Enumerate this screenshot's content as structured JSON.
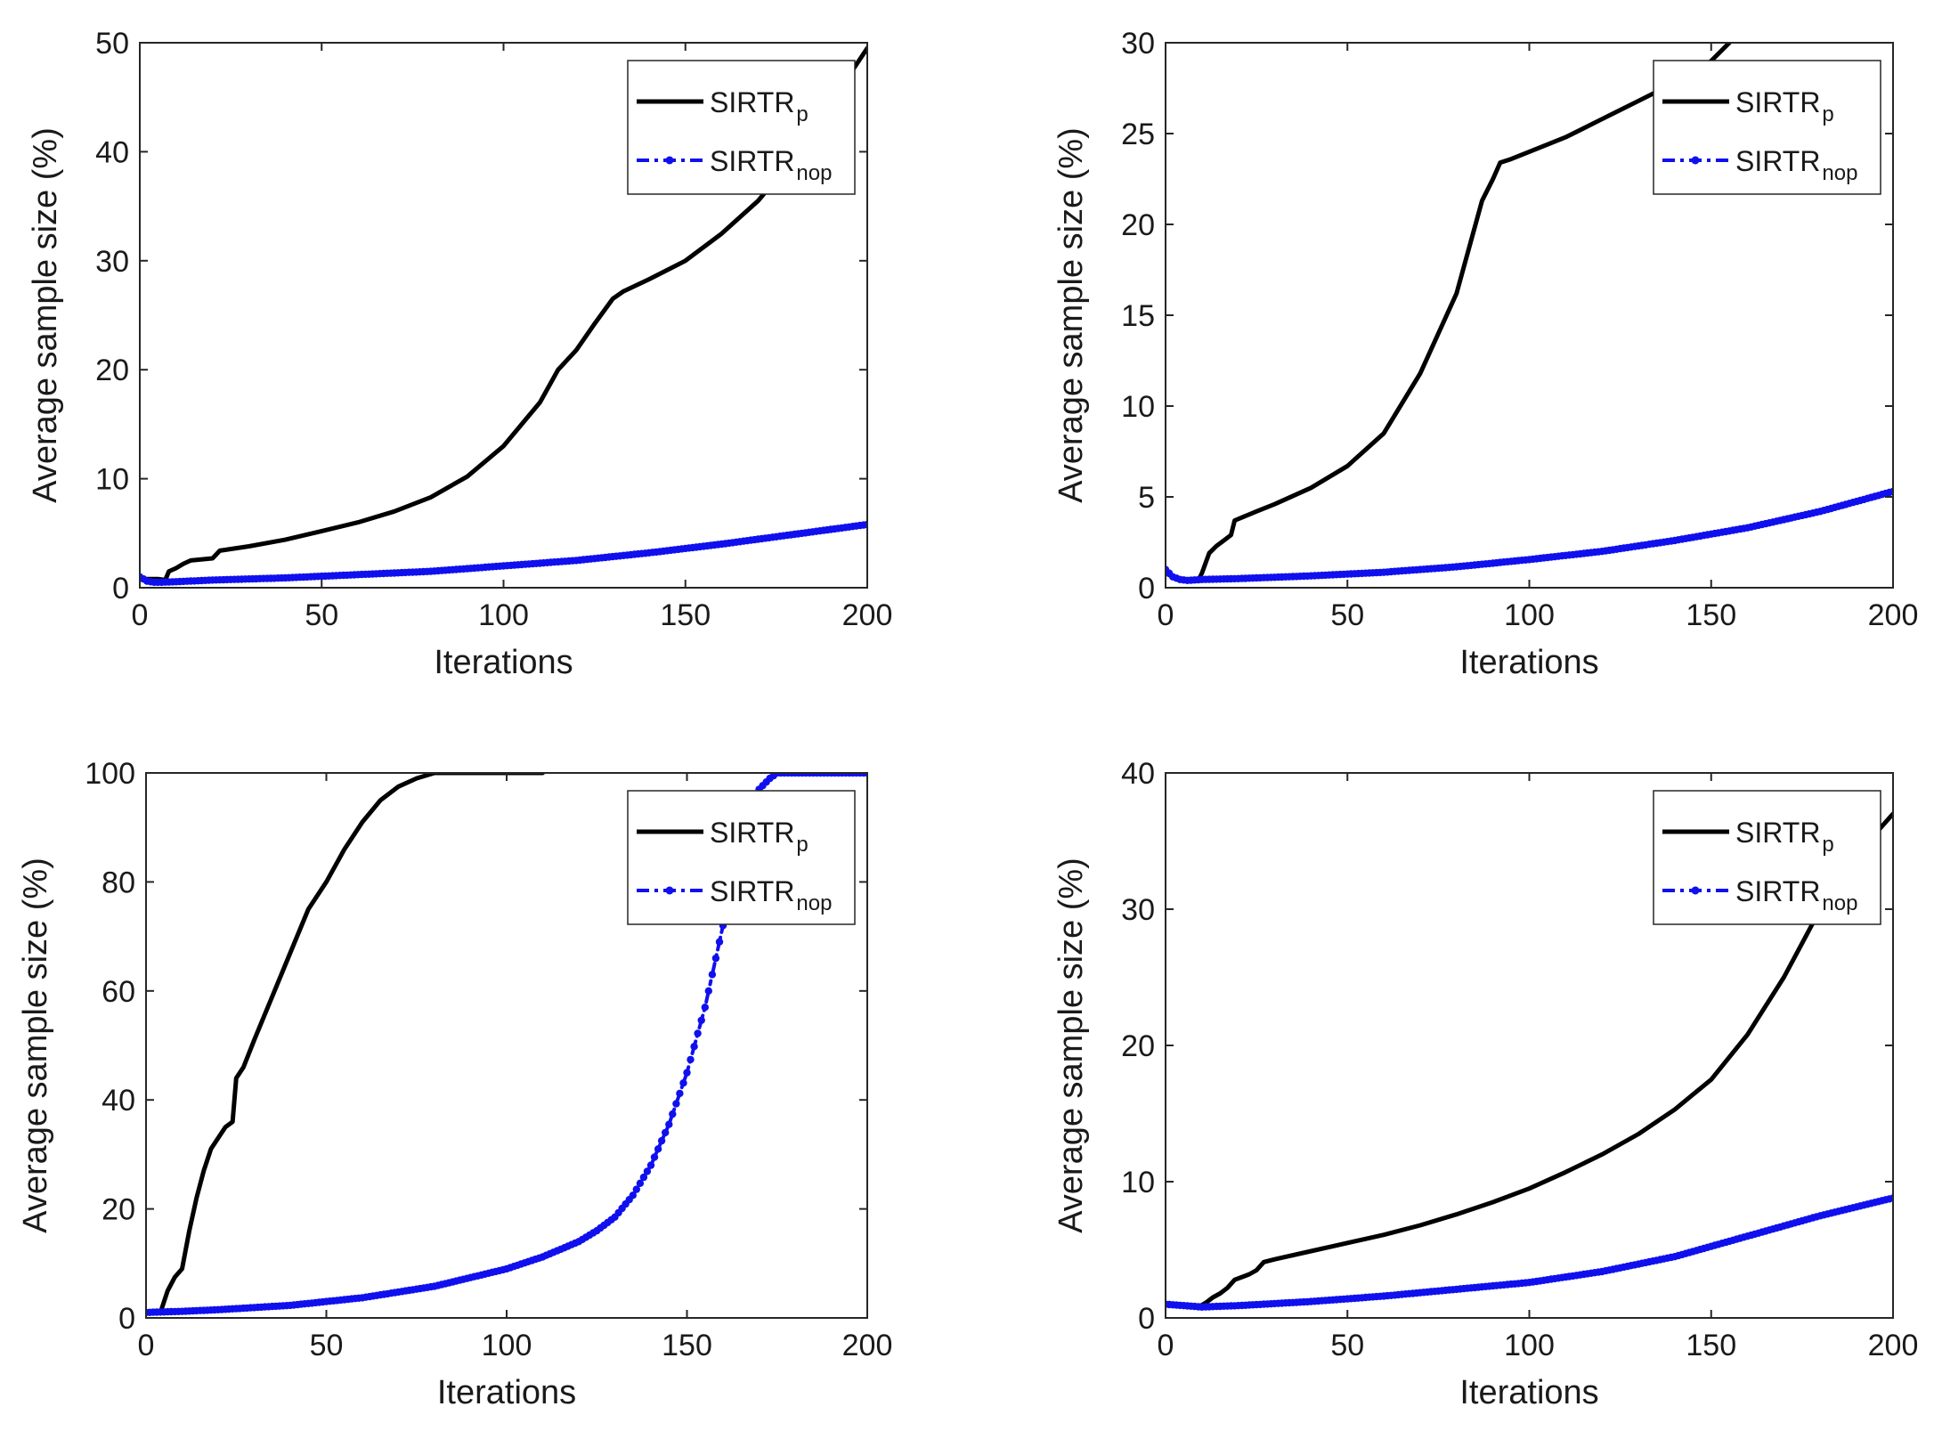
{
  "chart_data": [
    {
      "type": "line",
      "xlabel": "Iterations",
      "ylabel": "Average sample size (%)",
      "xlim": [
        0,
        200
      ],
      "ylim": [
        0,
        50
      ],
      "xticks": [
        0,
        50,
        100,
        150,
        200
      ],
      "yticks": [
        0,
        10,
        20,
        30,
        40,
        50
      ],
      "legend_position": "top-right",
      "series": [
        {
          "name": "SIRTR",
          "subscript": "p",
          "color": "#000000",
          "style": "solid",
          "marker": "none",
          "x": [
            0,
            5,
            7,
            8,
            10,
            12,
            14,
            20,
            22,
            30,
            40,
            50,
            60,
            70,
            80,
            90,
            100,
            110,
            115,
            120,
            125,
            130,
            133,
            140,
            150,
            160,
            170,
            180,
            190,
            200
          ],
          "y": [
            0.8,
            0.8,
            0.7,
            1.5,
            1.8,
            2.2,
            2.5,
            2.7,
            3.4,
            3.8,
            4.4,
            5.2,
            6.0,
            7.0,
            8.3,
            10.2,
            13.0,
            17.0,
            20.0,
            21.8,
            24.2,
            26.5,
            27.2,
            28.3,
            30.0,
            32.5,
            35.5,
            39.5,
            44.5,
            49.5
          ]
        },
        {
          "name": "SIRTR",
          "subscript": "nop",
          "color": "#1010ee",
          "style": "dashdot",
          "marker": "dot",
          "x": [
            0,
            2,
            4,
            6,
            10,
            20,
            40,
            60,
            80,
            100,
            120,
            140,
            160,
            180,
            200
          ],
          "y": [
            1.0,
            0.6,
            0.5,
            0.5,
            0.55,
            0.7,
            0.9,
            1.2,
            1.5,
            2.0,
            2.5,
            3.2,
            4.0,
            4.9,
            5.8
          ]
        }
      ]
    },
    {
      "type": "line",
      "xlabel": "Iterations",
      "ylabel": "Average sample size (%)",
      "xlim": [
        0,
        200
      ],
      "ylim": [
        0,
        30
      ],
      "xticks": [
        0,
        50,
        100,
        150,
        200
      ],
      "yticks": [
        0,
        5,
        10,
        15,
        20,
        25,
        30
      ],
      "legend_position": "top-right",
      "series": [
        {
          "name": "SIRTR",
          "subscript": "p",
          "color": "#000000",
          "style": "solid",
          "marker": "none",
          "x": [
            0,
            3,
            6,
            9,
            10,
            12,
            14,
            16,
            18,
            19,
            25,
            30,
            40,
            50,
            60,
            70,
            80,
            87,
            90,
            92,
            95,
            100,
            110,
            120,
            130,
            140,
            150,
            155
          ],
          "y": [
            0.8,
            0.5,
            0.4,
            0.4,
            0.8,
            1.9,
            2.3,
            2.6,
            2.9,
            3.7,
            4.2,
            4.6,
            5.5,
            6.7,
            8.5,
            11.8,
            16.2,
            21.3,
            22.5,
            23.4,
            23.6,
            24.0,
            24.8,
            25.8,
            26.8,
            27.8,
            29.0,
            30.0
          ]
        },
        {
          "name": "SIRTR",
          "subscript": "nop",
          "color": "#1010ee",
          "style": "dashdot",
          "marker": "dot",
          "x": [
            0,
            2,
            4,
            6,
            10,
            20,
            40,
            60,
            80,
            100,
            120,
            140,
            160,
            180,
            200
          ],
          "y": [
            1.0,
            0.6,
            0.45,
            0.4,
            0.45,
            0.5,
            0.65,
            0.85,
            1.15,
            1.55,
            2.0,
            2.6,
            3.3,
            4.2,
            5.3
          ]
        }
      ]
    },
    {
      "type": "line",
      "xlabel": "Iterations",
      "ylabel": "Average sample size (%)",
      "xlim": [
        0,
        200
      ],
      "ylim": [
        0,
        100
      ],
      "xticks": [
        0,
        50,
        100,
        150,
        200
      ],
      "yticks": [
        0,
        20,
        40,
        60,
        80,
        100
      ],
      "legend_position": "top-right",
      "series": [
        {
          "name": "SIRTR",
          "subscript": "p",
          "color": "#000000",
          "style": "solid",
          "marker": "none",
          "x": [
            0,
            4,
            6,
            8,
            10,
            12,
            14,
            16,
            18,
            20,
            22,
            24,
            25,
            27,
            30,
            35,
            40,
            45,
            50,
            55,
            60,
            65,
            70,
            75,
            80,
            85,
            110
          ],
          "y": [
            1,
            1,
            5,
            7.5,
            9,
            16,
            22,
            27,
            31,
            33,
            35,
            36,
            44,
            46,
            51,
            59,
            67,
            75,
            80,
            86,
            91,
            95,
            97.5,
            99,
            100,
            100,
            100
          ]
        },
        {
          "name": "SIRTR",
          "subscript": "nop",
          "color": "#1010ee",
          "style": "dashdot",
          "marker": "dot",
          "x": [
            0,
            10,
            20,
            40,
            60,
            80,
            100,
            110,
            120,
            125,
            130,
            135,
            140,
            145,
            150,
            155,
            160,
            163,
            165,
            168,
            170,
            173,
            175,
            180,
            200
          ],
          "y": [
            1,
            1.2,
            1.5,
            2.3,
            3.7,
            5.8,
            9,
            11.2,
            14.0,
            16.0,
            18.5,
            22.5,
            28.0,
            35.5,
            45.0,
            57.0,
            72.0,
            82.0,
            88.0,
            94.0,
            97.0,
            99.0,
            100,
            100,
            100
          ]
        }
      ]
    },
    {
      "type": "line",
      "xlabel": "Iterations",
      "ylabel": "Average sample size (%)",
      "xlim": [
        0,
        200
      ],
      "ylim": [
        0,
        40
      ],
      "xticks": [
        0,
        50,
        100,
        150,
        200
      ],
      "yticks": [
        0,
        10,
        20,
        30,
        40
      ],
      "legend_position": "top-right",
      "series": [
        {
          "name": "SIRTR",
          "subscript": "p",
          "color": "#000000",
          "style": "solid",
          "marker": "none",
          "x": [
            0,
            5,
            9,
            11,
            13,
            15,
            17,
            19,
            21,
            23,
            25,
            27,
            30,
            40,
            50,
            60,
            70,
            80,
            90,
            100,
            110,
            120,
            130,
            140,
            150,
            160,
            170,
            180,
            190,
            200
          ],
          "y": [
            1.0,
            0.9,
            0.8,
            1.1,
            1.5,
            1.8,
            2.2,
            2.8,
            3.0,
            3.2,
            3.5,
            4.1,
            4.3,
            4.9,
            5.5,
            6.1,
            6.8,
            7.6,
            8.5,
            9.5,
            10.7,
            12.0,
            13.5,
            15.3,
            17.5,
            20.8,
            25.0,
            30.0,
            34.0,
            37.0
          ]
        },
        {
          "name": "SIRTR",
          "subscript": "nop",
          "color": "#1010ee",
          "style": "dashdot",
          "marker": "dot",
          "x": [
            0,
            5,
            10,
            20,
            40,
            60,
            80,
            100,
            120,
            140,
            160,
            180,
            200
          ],
          "y": [
            1.0,
            0.9,
            0.8,
            0.9,
            1.2,
            1.6,
            2.1,
            2.6,
            3.4,
            4.5,
            6.0,
            7.5,
            8.8
          ]
        }
      ]
    }
  ]
}
